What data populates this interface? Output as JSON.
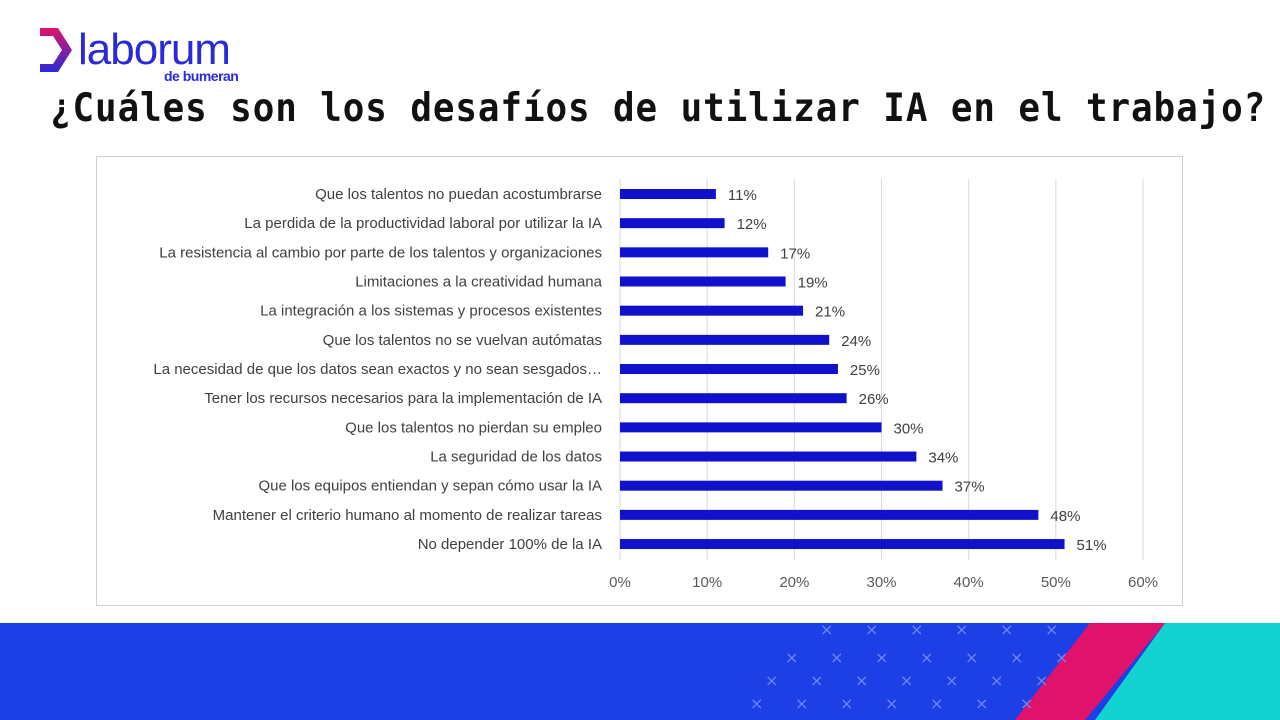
{
  "brand": {
    "name": "laborum",
    "sub": "de bumeran",
    "accent": "#1a1ad6",
    "gradient_top": "#e0136c",
    "gradient_bottom": "#2a2ad6"
  },
  "title": "¿Cuáles son los desafíos de utilizar IA en el trabajo?",
  "footer": {
    "band_color": "#1c3fe6",
    "stripe_pink": "#e0136c",
    "stripe_teal": "#13d3d0"
  },
  "chart_data": {
    "type": "bar",
    "orientation": "horizontal",
    "categories": [
      "Que los talentos no puedan acostumbrarse",
      "La perdida de la productividad laboral por utilizar la IA",
      "La resistencia al cambio por parte de los talentos y organizaciones",
      "Limitaciones a la creatividad humana",
      "La integración a los sistemas y procesos existentes",
      "Que los talentos no se vuelvan autómatas",
      "La necesidad de que los datos sean exactos y no sean sesgados…",
      "Tener los recursos necesarios para la implementación de IA",
      "Que los talentos no pierdan su empleo",
      "La seguridad de los datos",
      "Que los equipos entiendan y sepan cómo usar la IA",
      "Mantener el criterio humano al momento de realizar tareas",
      "No depender 100% de la IA"
    ],
    "values": [
      11,
      12,
      17,
      19,
      21,
      24,
      25,
      26,
      30,
      34,
      37,
      48,
      51
    ],
    "data_labels": [
      "11%",
      "12%",
      "17%",
      "19%",
      "21%",
      "24%",
      "25%",
      "26%",
      "30%",
      "34%",
      "37%",
      "48%",
      "51%"
    ],
    "x_ticks": [
      0,
      10,
      20,
      30,
      40,
      50,
      60
    ],
    "x_tick_labels": [
      "0%",
      "10%",
      "20%",
      "30%",
      "40%",
      "50%",
      "60%"
    ],
    "xlim": [
      0,
      60
    ],
    "grid": "vertical",
    "bar_color": "#1111cc",
    "legend": "none"
  }
}
